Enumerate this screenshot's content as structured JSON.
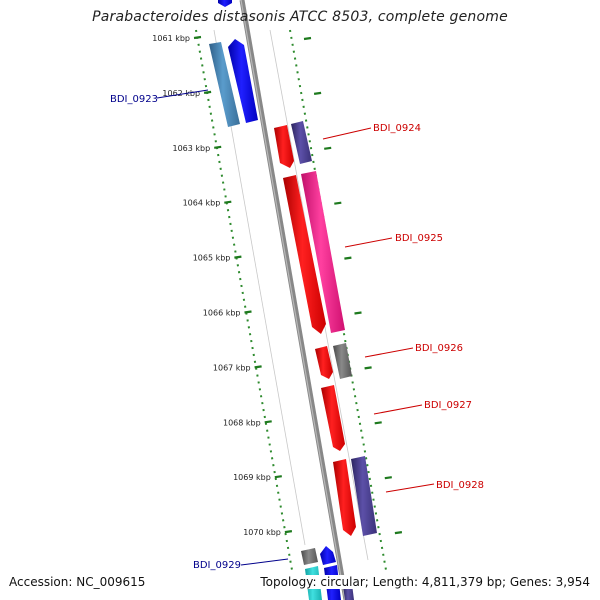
{
  "title": "Parabacteroides distasonis ATCC 8503, complete genome",
  "footer": {
    "accession": "Accession: NC_009615",
    "summary": "Topology: circular; Length: 4,811,379 bp; Genes: 3,954"
  },
  "scale_labels": [
    "1061 kbp",
    "1062 kbp",
    "1063 kbp",
    "1064 kbp",
    "1065 kbp",
    "1066 kbp",
    "1067 kbp",
    "1068 kbp",
    "1069 kbp",
    "1070 kbp"
  ],
  "gene_labels": [
    {
      "id": "BDI_0923",
      "color": "#00008b"
    },
    {
      "id": "BDI_0924",
      "color": "#cc0000"
    },
    {
      "id": "BDI_0925",
      "color": "#cc0000"
    },
    {
      "id": "BDI_0926",
      "color": "#cc0000"
    },
    {
      "id": "BDI_0927",
      "color": "#cc0000"
    },
    {
      "id": "BDI_0928",
      "color": "#cc0000"
    },
    {
      "id": "BDI_0929",
      "color": "#00008b"
    }
  ],
  "colors": {
    "backbone": "#808080",
    "ticks": "#1e7a1e",
    "strand_outline": "#2e8b2e",
    "red": "#ff0000",
    "magenta": "#ff1493",
    "blue": "#0000ff",
    "steelblue": "#4682b4",
    "slateblue": "#483d8b",
    "gray": "#6b6b6b",
    "cyan": "#22cccc"
  }
}
